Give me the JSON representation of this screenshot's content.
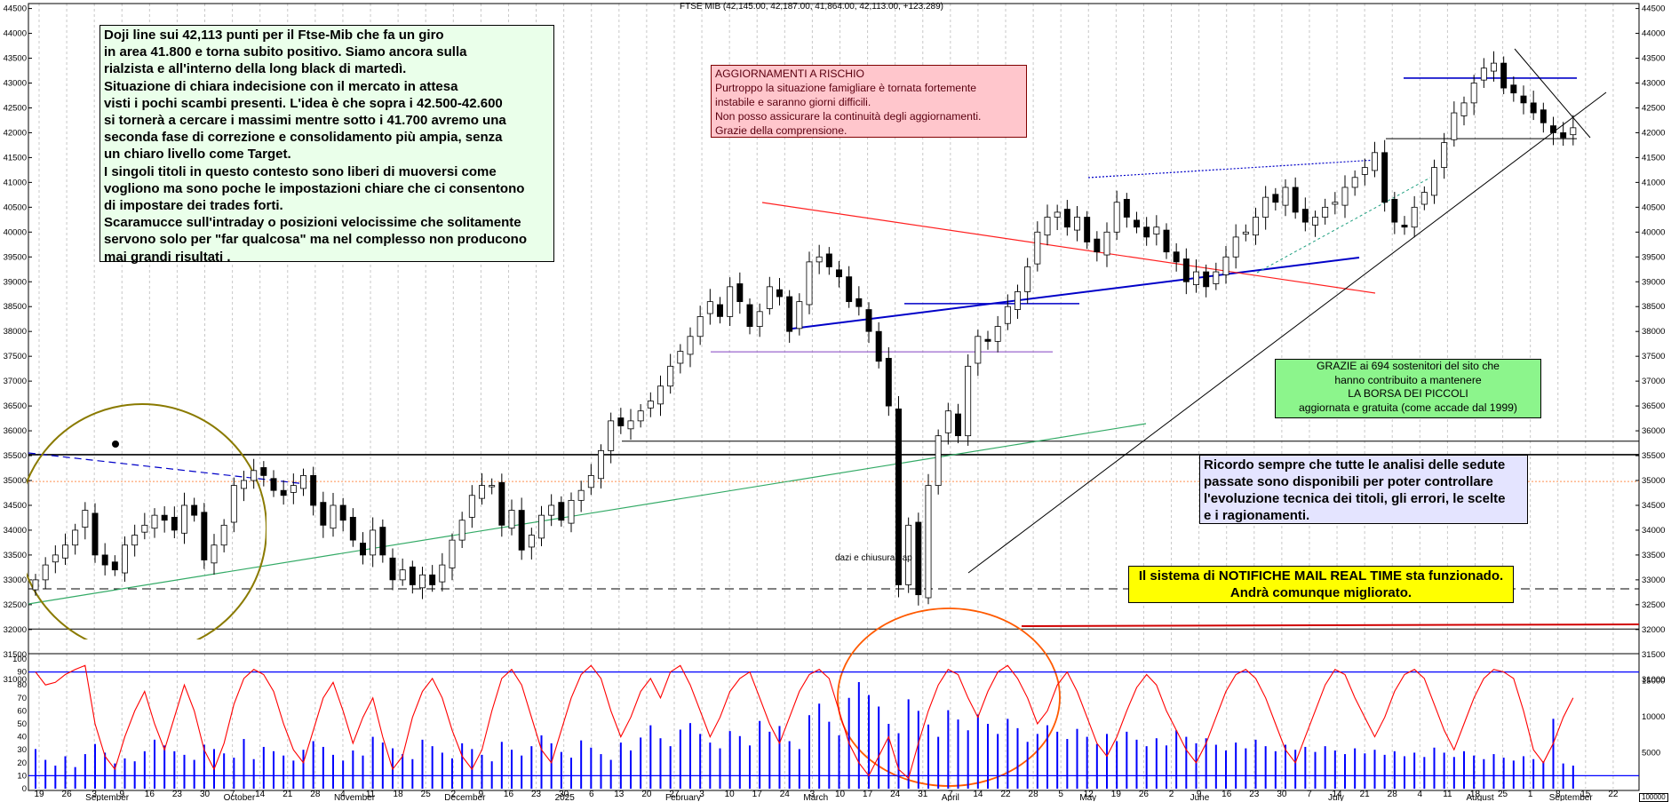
{
  "title": "FTSE MIB (42,145.00, 42,187.00, 41,864.00, 42,113.00, +123.289)",
  "colors": {
    "candle_up": "#ffffff",
    "candle_down": "#000000",
    "oscillator": "#ff0000",
    "volume": "#0000ff",
    "grid": "#c8c8c8",
    "trendline_blue": "#0000c8",
    "trendline_red": "#ff2020",
    "trendline_green": "#33aa66",
    "ellipse_olive": "#8a7a00",
    "circle_orange": "#ff5a00",
    "level_orange_dotted": "#ff9050",
    "note_main_bg": "#eaffea",
    "note_risk_bg": "#ffc6cc",
    "note_thanks_bg": "#8cf58c",
    "note_analysis_bg": "#e4e4ff",
    "note_notify_bg": "#ffff00"
  },
  "notes": {
    "main": [
      "Doji line sui 42,113 punti per il Ftse-Mib che fa un giro",
      "in area 41.800 e torna subito positivo. Siamo ancora sulla",
      "rialzista e all'interno della long black di martedì.",
      "Situazione di chiara indecisione con il mercato in attesa",
      "visti i pochi scambi presenti. L'idea è che sopra i 42.500-42.600",
      "si tornerà a cercare i massimi mentre sotto i 41.700 avremo una",
      "seconda fase di correzione e consolidamento più ampia, senza",
      "un chiaro livello come Target.",
      "I singoli titoli in questo contesto sono liberi di muoversi come",
      "vogliono ma sono poche le impostazioni chiare che ci consentono",
      "di impostare dei trades forti.",
      "Scaramucce sull'intraday o posizioni velocissime che solitamente",
      "servono solo per \"far qualcosa\" ma nel complesso non producono",
      "mai grandi risultati ."
    ],
    "risk": [
      "AGGIORNAMENTI A RISCHIO",
      "Purtroppo la situazione famigliare è tornata fortemente",
      "instabile e saranno giorni difficili.",
      "Non posso assicurare la continuità degli aggiornamenti.",
      "Grazie della comprensione."
    ],
    "thanks": [
      "GRAZIE ai 694 sostenitori del sito che",
      "hanno contribuito a mantenere",
      "LA BORSA DEI PICCOLI",
      "aggiornata e gratuita (come accade dal 1999)"
    ],
    "analysis": [
      "Ricordo sempre che tutte le analisi delle sedute",
      "passate sono disponibili per poter controllare",
      "l'evoluzione tecnica dei titoli, gli errori, le scelte",
      "e i ragionamenti."
    ],
    "notify": [
      "Il sistema di NOTIFICHE MAIL REAL TIME sta funzionado.",
      "Andrà comunque migliorato."
    ]
  },
  "annotations": {
    "gap_label": "dazi e chiusura gap",
    "badge": "100000"
  },
  "chart_data": {
    "type": "candlestick",
    "price_axis": {
      "range": [
        31800,
        44600
      ],
      "ticks": [
        32000,
        32500,
        33000,
        33500,
        34000,
        34500,
        35000,
        35500,
        36000,
        36500,
        37000,
        37500,
        38000,
        38500,
        39000,
        39500,
        40000,
        40500,
        41000,
        41500,
        42000,
        42500,
        43000,
        43500,
        44000,
        44500
      ],
      "tick_labels": [
        "32000",
        "32500",
        "33000",
        "33500",
        "34000",
        "34500",
        "35000",
        "35500",
        "36000",
        "36500",
        "37000",
        "37500",
        "38000",
        "38500",
        "39000",
        "39500",
        "40000",
        "40500",
        "41000",
        "41500",
        "42000",
        "42500",
        "43000",
        "43500",
        "44000",
        "44500"
      ]
    },
    "lower_left_axis": [
      "31500",
      "31000",
      "100",
      "90",
      "80",
      "70",
      "60",
      "50",
      "40",
      "30",
      "20",
      "10",
      "0"
    ],
    "oscillator_axis": {
      "range": [
        0,
        100
      ],
      "ticks": [
        0,
        10,
        20,
        30,
        40,
        50,
        60,
        70,
        80,
        90,
        100
      ]
    },
    "volume_axis": {
      "range": [
        0,
        18000
      ],
      "tick_labels": [
        "5000",
        "10000",
        "15000"
      ],
      "extra_right_labels": [
        "31500",
        "31000"
      ]
    },
    "x_tick_labels": [
      "19",
      "26",
      "3",
      "9",
      "16",
      "23",
      "30",
      "7",
      "14",
      "21",
      "28",
      "4",
      "11",
      "18",
      "25",
      "2",
      "9",
      "16",
      "23",
      "30",
      "6",
      "13",
      "20",
      "27",
      "3",
      "10",
      "17",
      "24",
      "3",
      "10",
      "17",
      "24",
      "31",
      "7",
      "14",
      "22",
      "28",
      "5",
      "12",
      "19",
      "26",
      "2",
      "9",
      "16",
      "23",
      "30",
      "7",
      "14",
      "21",
      "28",
      "4",
      "11",
      "18",
      "25",
      "1",
      "8",
      "15",
      "22"
    ],
    "month_labels": [
      "September",
      "October",
      "November",
      "December",
      "2025",
      "February",
      "March",
      "April",
      "May",
      "June",
      "July",
      "August",
      "September"
    ],
    "horizontal_levels": [
      {
        "value": 35790,
        "style": "solid"
      },
      {
        "value": 35520,
        "style": "solid-thick"
      },
      {
        "value": 34980,
        "style": "dotted-orange"
      },
      {
        "value": 32820,
        "style": "dashed"
      },
      {
        "value": 32010,
        "style": "solid"
      },
      {
        "value": 38560,
        "style": "solid-blue"
      },
      {
        "value": 37590,
        "style": "solid-purple"
      },
      {
        "value": 43100,
        "style": "solid-blue"
      },
      {
        "value": 41880,
        "style": "solid"
      }
    ],
    "price_path": [
      33000,
      33300,
      33500,
      33700,
      34000,
      34400,
      33500,
      33300,
      33200,
      33700,
      33900,
      34100,
      34300,
      34200,
      34000,
      34500,
      34300,
      33400,
      33700,
      34100,
      34900,
      35000,
      35200,
      35100,
      34800,
      34700,
      34900,
      35100,
      34500,
      34100,
      34500,
      34200,
      33800,
      33500,
      34000,
      33500,
      33000,
      33200,
      32900,
      33100,
      32900,
      33300,
      33800,
      34200,
      34700,
      34900,
      34900,
      34100,
      34400,
      33600,
      33900,
      34300,
      34500,
      34200,
      34600,
      34800,
      35100,
      35600,
      36200,
      36100,
      36200,
      36400,
      36600,
      36900,
      37300,
      37600,
      37900,
      38300,
      38600,
      38300,
      38900,
      38600,
      38100,
      38400,
      38900,
      38700,
      38000,
      38600,
      39400,
      39500,
      39300,
      39100,
      38600,
      38500,
      38000,
      37400,
      36500,
      32900,
      34100,
      32700,
      34900,
      35900,
      36400,
      35900,
      37300,
      37900,
      37800,
      38100,
      38500,
      38800,
      39300,
      40000,
      40300,
      40400,
      40100,
      40300,
      39800,
      39600,
      40000,
      40600,
      40300,
      40100,
      39900,
      40100,
      39600,
      39400,
      39000,
      39200,
      38900,
      39200,
      39500,
      39900,
      40000,
      40300,
      40700,
      40600,
      40900,
      40400,
      40200,
      40300,
      40500,
      40600,
      40900,
      41100,
      41300,
      41600,
      40600,
      40200,
      40100,
      40500,
      40800,
      41300,
      41800,
      42400,
      42600,
      43000,
      43300,
      43400,
      42900,
      42800,
      42600,
      42400,
      42200,
      42000,
      41900,
      42100
    ],
    "oscillator_path": [
      90,
      80,
      82,
      88,
      92,
      95,
      50,
      25,
      15,
      40,
      60,
      75,
      50,
      30,
      55,
      80,
      60,
      30,
      15,
      35,
      65,
      85,
      92,
      88,
      75,
      50,
      30,
      20,
      45,
      70,
      82,
      60,
      35,
      55,
      70,
      40,
      15,
      25,
      55,
      75,
      85,
      70,
      45,
      25,
      15,
      30,
      60,
      85,
      92,
      80,
      55,
      30,
      20,
      45,
      70,
      88,
      95,
      85,
      60,
      40,
      55,
      75,
      85,
      70,
      90,
      95,
      80,
      60,
      40,
      55,
      75,
      85,
      90,
      70,
      50,
      35,
      55,
      75,
      88,
      92,
      85,
      60,
      35,
      20,
      10,
      25,
      40,
      15,
      8,
      35,
      60,
      80,
      92,
      88,
      70,
      55,
      75,
      90,
      95,
      85,
      70,
      50,
      60,
      80,
      90,
      75,
      55,
      35,
      25,
      40,
      60,
      78,
      88,
      80,
      60,
      45,
      30,
      20,
      35,
      55,
      75,
      88,
      92,
      85,
      70,
      50,
      30,
      20,
      40,
      60,
      80,
      92,
      88,
      70,
      55,
      40,
      55,
      75,
      88,
      92,
      85,
      65,
      45,
      30,
      50,
      70,
      85,
      92,
      90,
      85,
      60,
      30,
      20,
      35,
      55,
      70
    ],
    "volume_path": [
      5500,
      4000,
      3200,
      4500,
      3000,
      4800,
      6200,
      5000,
      3500,
      4200,
      3800,
      5200,
      6800,
      6000,
      5200,
      4700,
      4000,
      6100,
      5500,
      4900,
      4300,
      6900,
      4100,
      5800,
      5200,
      4600,
      3900,
      5400,
      6600,
      5800,
      4700,
      3900,
      5300,
      4600,
      7200,
      6400,
      5600,
      4800,
      4100,
      6800,
      5900,
      5000,
      4200,
      6300,
      5500,
      4700,
      3800,
      6500,
      5400,
      4600,
      5900,
      7400,
      6300,
      5100,
      4300,
      6700,
      5700,
      4800,
      4000,
      6400,
      5300,
      7100,
      8800,
      7000,
      5900,
      8200,
      9100,
      7600,
      6400,
      5600,
      8000,
      7300,
      6000,
      9400,
      7900,
      8700,
      6600,
      5500,
      10200,
      11800,
      9300,
      7400,
      12600,
      14800,
      13000,
      11400,
      9000,
      7700,
      12400,
      10800,
      8900,
      7200,
      10900,
      9600,
      8100,
      10300,
      9000,
      7600,
      9700,
      8400,
      6500,
      7600,
      8800,
      7900,
      6900,
      8300,
      7200,
      6200,
      7600,
      6600,
      7900,
      6800,
      5900,
      7000,
      6000,
      8100,
      7200,
      6300,
      7000,
      6100,
      5300,
      6400,
      5600,
      6800,
      5900,
      5200,
      6100,
      5400,
      5800,
      5100,
      5900,
      5300,
      4800,
      5600,
      4900,
      5400,
      4700,
      5200,
      4500,
      5000,
      4400,
      5700,
      5000,
      4400,
      5200,
      4600,
      4100,
      4800,
      4300,
      3900,
      4500,
      4100,
      3800,
      9700,
      3500,
      3200
    ]
  }
}
